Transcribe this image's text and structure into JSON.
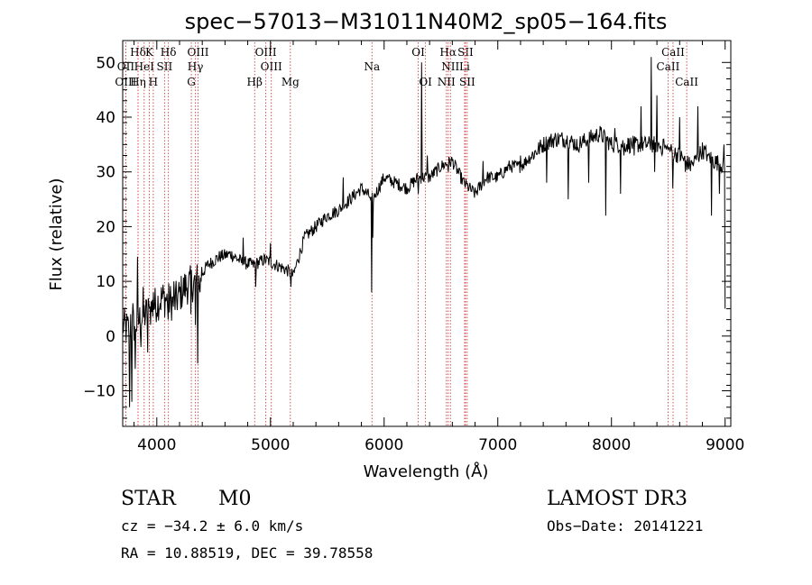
{
  "chart_data": {
    "type": "line",
    "title": "spec−57013−M31011N40M2_sp05−164.fits",
    "xlabel": "Wavelength (Å)",
    "ylabel": "Flux (relative)",
    "xlim": [
      3700,
      9050
    ],
    "ylim": [
      -16.5,
      54
    ],
    "xticks": [
      4000,
      5000,
      6000,
      7000,
      8000,
      9000
    ],
    "xtick_labels": [
      "4000",
      "5000",
      "6000",
      "7000",
      "8000",
      "9000"
    ],
    "yticks": [
      -10,
      0,
      10,
      20,
      30,
      40,
      50
    ],
    "ytick_labels": [
      "−10",
      "0",
      "10",
      "20",
      "30",
      "40",
      "50"
    ],
    "continuum": [
      [
        3700,
        2
      ],
      [
        3760,
        1
      ],
      [
        3850,
        3
      ],
      [
        3950,
        5
      ],
      [
        4050,
        7
      ],
      [
        4150,
        6
      ],
      [
        4250,
        9
      ],
      [
        4350,
        10
      ],
      [
        4450,
        13
      ],
      [
        4550,
        14.5
      ],
      [
        4650,
        15
      ],
      [
        4750,
        13.5
      ],
      [
        4850,
        13
      ],
      [
        4950,
        14
      ],
      [
        5050,
        13
      ],
      [
        5150,
        12
      ],
      [
        5200,
        11
      ],
      [
        5300,
        18
      ],
      [
        5400,
        20
      ],
      [
        5500,
        22
      ],
      [
        5600,
        23
      ],
      [
        5700,
        25
      ],
      [
        5800,
        27
      ],
      [
        5900,
        25
      ],
      [
        6000,
        29
      ],
      [
        6100,
        28
      ],
      [
        6200,
        27
      ],
      [
        6300,
        29
      ],
      [
        6400,
        29
      ],
      [
        6500,
        31
      ],
      [
        6600,
        32
      ],
      [
        6700,
        28
      ],
      [
        6800,
        26
      ],
      [
        6900,
        29
      ],
      [
        7000,
        29
      ],
      [
        7100,
        31
      ],
      [
        7200,
        31
      ],
      [
        7300,
        33
      ],
      [
        7400,
        35
      ],
      [
        7500,
        36
      ],
      [
        7600,
        36
      ],
      [
        7700,
        35
      ],
      [
        7800,
        36
      ],
      [
        7900,
        37
      ],
      [
        8000,
        35
      ],
      [
        8100,
        35
      ],
      [
        8200,
        35
      ],
      [
        8300,
        35
      ],
      [
        8400,
        35
      ],
      [
        8500,
        34
      ],
      [
        8600,
        33
      ],
      [
        8700,
        31
      ],
      [
        8800,
        34
      ],
      [
        8900,
        32
      ],
      [
        9000,
        31
      ]
    ],
    "features": [
      [
        3760,
        -13
      ],
      [
        3770,
        4
      ],
      [
        3780,
        -12
      ],
      [
        3790,
        6
      ],
      [
        3810,
        -6
      ],
      [
        3830,
        14.5
      ],
      [
        3860,
        -2
      ],
      [
        3880,
        9
      ],
      [
        3920,
        -3
      ],
      [
        3935,
        5
      ],
      [
        3970,
        8
      ],
      [
        4100,
        3
      ],
      [
        4150,
        10
      ],
      [
        4300,
        4
      ],
      [
        4340,
        2
      ],
      [
        4360,
        -5
      ],
      [
        4380,
        8
      ],
      [
        4760,
        18
      ],
      [
        4870,
        9
      ],
      [
        5000,
        17
      ],
      [
        5180,
        9
      ],
      [
        5240,
        14
      ],
      [
        5640,
        29
      ],
      [
        5880,
        25
      ],
      [
        5892,
        8
      ],
      [
        5900,
        18
      ],
      [
        6280,
        28
      ],
      [
        6300,
        26
      ],
      [
        6330,
        50
      ],
      [
        6380,
        33
      ],
      [
        6565,
        30
      ],
      [
        6870,
        32
      ],
      [
        7200,
        33
      ],
      [
        7430,
        28
      ],
      [
        7620,
        25
      ],
      [
        7700,
        34
      ],
      [
        7800,
        28
      ],
      [
        7950,
        22
      ],
      [
        8030,
        38
      ],
      [
        8080,
        26
      ],
      [
        8110,
        33
      ],
      [
        8200,
        33
      ],
      [
        8260,
        42
      ],
      [
        8350,
        51
      ],
      [
        8380,
        30
      ],
      [
        8400,
        44
      ],
      [
        8460,
        36
      ],
      [
        8500,
        34
      ],
      [
        8520,
        34
      ],
      [
        8540,
        27
      ],
      [
        8600,
        40
      ],
      [
        8650,
        30
      ],
      [
        8700,
        32
      ],
      [
        8760,
        42
      ],
      [
        8850,
        33
      ],
      [
        8880,
        22
      ],
      [
        8950,
        26
      ],
      [
        8990,
        35
      ],
      [
        9000,
        5
      ]
    ],
    "spectral_lines": [
      {
        "name": "Hδ",
        "wavelength": 3835,
        "row": 1
      },
      {
        "name": "K",
        "wavelength": 3934,
        "row": 1
      },
      {
        "name": "Hδ",
        "wavelength": 4102,
        "row": 1
      },
      {
        "name": "OIII",
        "wavelength": 4363,
        "row": 1
      },
      {
        "name": "OIII",
        "wavelength": 4959,
        "row": 1
      },
      {
        "name": "OI",
        "wavelength": 6300,
        "row": 1
      },
      {
        "name": "Hα",
        "wavelength": 6563,
        "row": 1
      },
      {
        "name": "SII",
        "wavelength": 6716,
        "row": 1
      },
      {
        "name": "CaII",
        "wavelength": 8542,
        "row": 1
      },
      {
        "name": "OII",
        "wavelength": 3727,
        "row": 2
      },
      {
        "name": "HeI",
        "wavelength": 3889,
        "row": 2
      },
      {
        "name": "SII",
        "wavelength": 4068,
        "row": 2
      },
      {
        "name": "Hγ",
        "wavelength": 4340,
        "row": 2
      },
      {
        "name": "OIII",
        "wavelength": 5007,
        "row": 2
      },
      {
        "name": "Na",
        "wavelength": 5893,
        "row": 2
      },
      {
        "name": "NII",
        "wavelength": 6583,
        "row": 2
      },
      {
        "name": "Li",
        "wavelength": 6708,
        "row": 2
      },
      {
        "name": "CaII",
        "wavelength": 8498,
        "row": 2
      },
      {
        "name": "OIII",
        "wavelength": 3727,
        "row": 3
      },
      {
        "name": "Hη",
        "wavelength": 3835,
        "row": 3
      },
      {
        "name": "H",
        "wavelength": 3969,
        "row": 3
      },
      {
        "name": "G",
        "wavelength": 4304,
        "row": 3
      },
      {
        "name": "Hβ",
        "wavelength": 4861,
        "row": 3
      },
      {
        "name": "Mg",
        "wavelength": 5175,
        "row": 3
      },
      {
        "name": "OI",
        "wavelength": 6364,
        "row": 3
      },
      {
        "name": "NII",
        "wavelength": 6548,
        "row": 3
      },
      {
        "name": "SII",
        "wavelength": 6731,
        "row": 3
      },
      {
        "name": "CaII",
        "wavelength": 8662,
        "row": 3
      }
    ],
    "annotations": {
      "object_class": "STAR",
      "subclass": "M0",
      "survey": "LAMOST DR3",
      "velocity": "cz = −34.2 ± 6.0 km/s",
      "obs_date": "Obs−Date: 20141221",
      "coords": "RA =  10.88519, DEC =  39.78558"
    }
  }
}
